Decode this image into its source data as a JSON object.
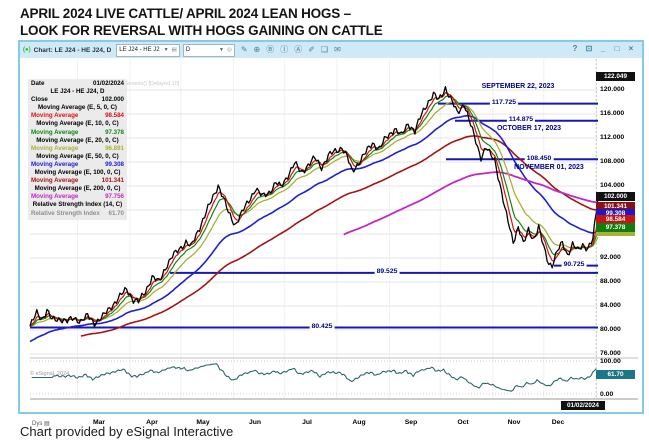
{
  "page_title_line1": "APRIL 2024 LIVE CATTLE/ APRIL 2024 LEAN HOGS –",
  "page_title_line2": "LOOK FOR REVERSAL WITH HOGS GAINING ON CATTLE",
  "caption": "Chart provided by eSignal Interactive",
  "window": {
    "logo_glyph": "(●)",
    "title": "Chart: LE J24 - HE J24, D",
    "symbol_combo": "LE J24 - HE J2",
    "interval_combo": "D",
    "toolbar_icons": [
      {
        "name": "pencil-icon",
        "glyph": "✎"
      },
      {
        "name": "circle-tool-icon",
        "glyph": "⊕"
      },
      {
        "name": "circled-b-icon",
        "glyph": "Ⓑ"
      },
      {
        "name": "circled-i-icon",
        "glyph": "Ⓘ"
      },
      {
        "name": "circled-a-icon",
        "glyph": "Ⓐ"
      },
      {
        "name": "pen-icon",
        "glyph": "✐"
      },
      {
        "name": "notes-icon",
        "glyph": "❏"
      },
      {
        "name": "message-icon",
        "glyph": "✉"
      }
    ],
    "controls": [
      {
        "name": "help-button",
        "glyph": "?"
      },
      {
        "name": "popout-button",
        "glyph": "⊡"
      },
      {
        "name": "minimize-button",
        "glyph": "_"
      },
      {
        "name": "maximize-button",
        "glyph": "□"
      },
      {
        "name": "close-button",
        "glyph": "×"
      }
    ]
  },
  "legend": {
    "rows": [
      {
        "type": "kv",
        "label": "Date",
        "value": "01/02/2024",
        "color": "#000000"
      },
      {
        "type": "hd",
        "label": "LE J24 - HE J24, D"
      },
      {
        "type": "kv",
        "label": "Close",
        "value": "102.000",
        "color": "#000000"
      },
      {
        "type": "hd",
        "label": "Moving Average (E, 5, 0, C)"
      },
      {
        "type": "kv",
        "label": "Moving Average",
        "value": "98.584",
        "color": "#dd1111"
      },
      {
        "type": "hd",
        "label": "Moving Average (E, 10, 0, C)"
      },
      {
        "type": "kv",
        "label": "Moving Average",
        "value": "97.378",
        "color": "#118811"
      },
      {
        "type": "hd",
        "label": "Moving Average (E, 20, 0, C)"
      },
      {
        "type": "kv",
        "label": "Moving Average",
        "value": "96.891",
        "color": "#a8b038"
      },
      {
        "type": "hd",
        "label": "Moving Average (E, 50, 0, C)"
      },
      {
        "type": "kv",
        "label": "Moving Average",
        "value": "99.308",
        "color": "#2020cc"
      },
      {
        "type": "hd",
        "label": "Moving Average (E, 100, 0, C)"
      },
      {
        "type": "kv",
        "label": "Moving Average",
        "value": "101.341",
        "color": "#a31515"
      },
      {
        "type": "hd",
        "label": "Moving Average (E, 200, 0, C)"
      },
      {
        "type": "kv",
        "label": "Moving Average",
        "value": "97.756",
        "color": "#c428c4"
      },
      {
        "type": "hd",
        "label": "Relative Strength Index (14, C)"
      },
      {
        "type": "kv",
        "label": "Relative Strength Index",
        "value": "61.70",
        "color": "#8f8f8f"
      }
    ]
  },
  "axis": {
    "price_ticks": [
      "120.000",
      "116.000",
      "112.000",
      "108.000",
      "104.000",
      "96.000",
      "92.000",
      "88.000",
      "84.000",
      "80.000",
      "76.000"
    ],
    "high_badge": {
      "text": "122.049",
      "bg": "#111111"
    },
    "value_badges": [
      {
        "text": "102.000",
        "bg": "#111111"
      },
      {
        "text": "101.341",
        "bg": "#8b1010"
      },
      {
        "text": "99.308",
        "bg": "#1a1acc"
      },
      {
        "text": "98.584",
        "bg": "#cc1111"
      },
      {
        "text": "97.378",
        "bg": "#0f7d0f"
      },
      {
        "text": "",
        "bg": "#a8b038"
      }
    ],
    "rsi_top_label": "100.00",
    "rsi_bottom_label": "0.00",
    "rsi_badge": {
      "text": "61.70",
      "bg": "#1d7688"
    },
    "months": [
      "Mar",
      "Apr",
      "May",
      "Jun",
      "Jul",
      "Aug",
      "Sep",
      "Oct",
      "Nov",
      "Dec"
    ],
    "date_badge": "01/02/2024",
    "interval_label": "Dys ▤"
  },
  "watermark": "© eSignal, 2024",
  "delayed_note": "Generic() [Delayed 10]",
  "chart_data": {
    "type": "line",
    "title": "LE J24 - HE J24, D (April 2024 Live Cattle minus April 2024 Lean Hogs spread)",
    "x_start": "2023-02-01",
    "x_end": "2024-01-02",
    "ylim_price_pane": [
      75.3,
      125.2
    ],
    "ylim_rsi_pane": [
      0,
      100
    ],
    "close": 102.0,
    "high_marker": 122.049,
    "price_waypoints_day_value": [
      [
        0,
        80.6
      ],
      [
        4,
        82.8
      ],
      [
        7,
        81.9
      ],
      [
        10,
        83.3
      ],
      [
        13,
        81.6
      ],
      [
        18,
        81.9
      ],
      [
        22,
        81.4
      ],
      [
        26,
        82.0
      ],
      [
        30,
        81.5
      ],
      [
        34,
        82.3
      ],
      [
        38,
        81.2
      ],
      [
        43,
        82.2
      ],
      [
        48,
        84.0
      ],
      [
        53,
        85.5
      ],
      [
        57,
        86.9
      ],
      [
        61,
        85.0
      ],
      [
        64,
        84.6
      ],
      [
        68,
        86.5
      ],
      [
        72,
        88.8
      ],
      [
        76,
        88.0
      ],
      [
        80,
        90.5
      ],
      [
        84,
        92.2
      ],
      [
        88,
        93.5
      ],
      [
        92,
        94.7
      ],
      [
        95,
        93.8
      ],
      [
        99,
        96.5
      ],
      [
        103,
        99.0
      ],
      [
        107,
        101.5
      ],
      [
        111,
        104.2
      ],
      [
        114,
        102.0
      ],
      [
        117,
        99.5
      ],
      [
        121,
        97.6
      ],
      [
        125,
        99.5
      ],
      [
        129,
        101.5
      ],
      [
        133,
        103.6
      ],
      [
        137,
        102.2
      ],
      [
        141,
        103.0
      ],
      [
        145,
        104.5
      ],
      [
        148,
        103.8
      ],
      [
        152,
        105.8
      ],
      [
        156,
        107.7
      ],
      [
        160,
        106.3
      ],
      [
        164,
        107.5
      ],
      [
        168,
        108.6
      ],
      [
        172,
        107.2
      ],
      [
        176,
        109.0
      ],
      [
        180,
        109.8
      ],
      [
        184,
        110.5
      ],
      [
        187,
        108.8
      ],
      [
        190,
        106.4
      ],
      [
        194,
        108.0
      ],
      [
        198,
        109.5
      ],
      [
        202,
        111.2
      ],
      [
        206,
        110.2
      ],
      [
        210,
        112.0
      ],
      [
        215,
        113.6
      ],
      [
        219,
        112.3
      ],
      [
        223,
        114.5
      ],
      [
        227,
        113.0
      ],
      [
        231,
        116.0
      ],
      [
        234,
        117.7
      ],
      [
        238,
        119.2
      ],
      [
        241,
        118.3
      ],
      [
        245,
        120.4
      ],
      [
        248,
        118.5
      ],
      [
        252,
        116.2
      ],
      [
        256,
        117.8
      ],
      [
        259,
        114.9
      ],
      [
        263,
        111.5
      ],
      [
        266,
        108.8
      ],
      [
        269,
        110.3
      ],
      [
        272,
        109.0
      ],
      [
        274,
        108.5
      ],
      [
        277,
        104.5
      ],
      [
        280,
        100.2
      ],
      [
        283,
        97.0
      ],
      [
        285,
        94.8
      ],
      [
        288,
        97.2
      ],
      [
        291,
        94.2
      ],
      [
        294,
        96.8
      ],
      [
        297,
        95.2
      ],
      [
        300,
        97.0
      ],
      [
        303,
        93.8
      ],
      [
        306,
        91.2
      ],
      [
        308,
        90.8
      ],
      [
        311,
        93.0
      ],
      [
        314,
        94.6
      ],
      [
        317,
        92.6
      ],
      [
        320,
        94.2
      ],
      [
        323,
        93.2
      ],
      [
        326,
        94.3
      ],
      [
        329,
        93.6
      ],
      [
        332,
        95.0
      ],
      [
        335,
        102.0
      ]
    ],
    "moving_averages": [
      {
        "period": 5,
        "type": "EMA",
        "color": "#dd1111",
        "last": 98.584
      },
      {
        "period": 10,
        "type": "EMA",
        "color": "#118811",
        "last": 97.378
      },
      {
        "period": 20,
        "type": "EMA",
        "color": "#a8b038",
        "last": 96.891
      },
      {
        "period": 50,
        "type": "EMA",
        "color": "#2020cc",
        "last": 99.308
      },
      {
        "period": 100,
        "type": "EMA",
        "color": "#a31515",
        "last": 101.341
      },
      {
        "period": 200,
        "type": "EMA",
        "color": "#c428c4",
        "last": 97.756
      }
    ],
    "rsi": {
      "period": 14,
      "last": 61.7
    },
    "levels": [
      {
        "label": "117.725",
        "value": 117.725,
        "date_label": "SEPTEMBER 22, 2023"
      },
      {
        "label": "114.875",
        "value": 114.875,
        "date_label": "OCTOBER 17, 2023"
      },
      {
        "label": "108.450",
        "value": 108.45,
        "date_label": "NOVEMBER 01, 2023"
      },
      {
        "label": "90.725",
        "value": 90.725
      },
      {
        "label": "89.525",
        "value": 89.525
      },
      {
        "label": "80.425",
        "value": 80.425
      }
    ],
    "legend_position": "top-left",
    "grid": true
  }
}
